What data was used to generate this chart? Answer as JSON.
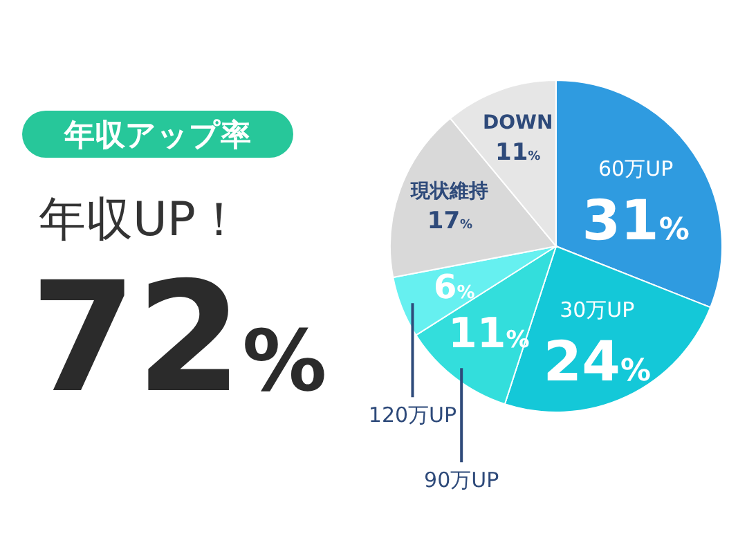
{
  "chart_data": {
    "type": "pie",
    "title": "年収アップ率",
    "annotations": [
      "年収UP！",
      "72%"
    ],
    "categories": [
      "60万UP",
      "30万UP",
      "90万UP",
      "120万UP",
      "現状維持",
      "DOWN"
    ],
    "values": [
      31,
      24,
      11,
      6,
      17,
      11
    ],
    "value_labels": [
      "31%",
      "24%",
      "11%",
      "6%",
      "17%",
      "11%"
    ],
    "colors": [
      "#2f9be0",
      "#14c8d8",
      "#33dedc",
      "#66f0f0",
      "#d9d9d9",
      "#e6e6e6"
    ]
  }
}
